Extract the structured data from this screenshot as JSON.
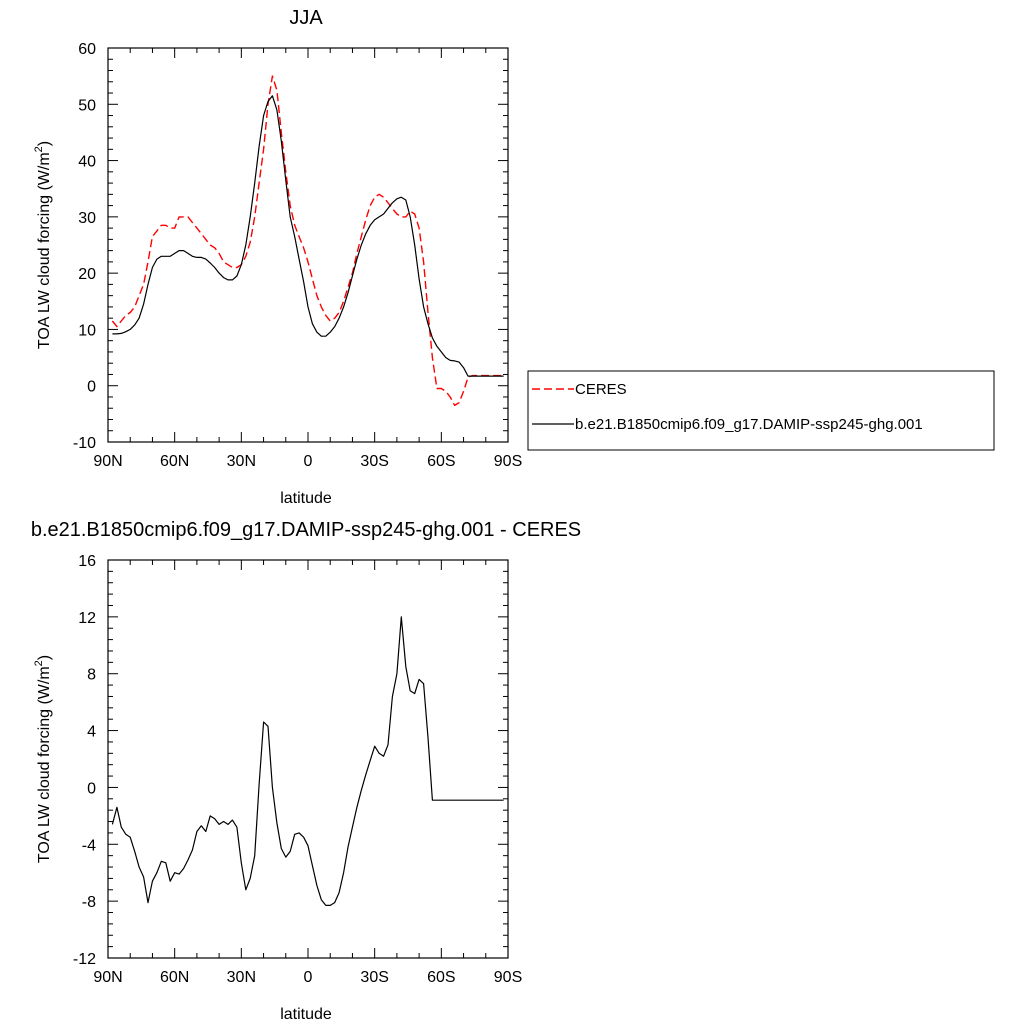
{
  "chart_data": [
    {
      "type": "line",
      "title": "JJA",
      "xlabel": "latitude",
      "ylabel": "TOA LW cloud forcing (W/m",
      "ylabel_sup": "2",
      "ylabel_end": ")",
      "xlim": [
        -90,
        90
      ],
      "ylim": [
        -10,
        60
      ],
      "xticks": [
        -90,
        -60,
        -30,
        0,
        30,
        60,
        90
      ],
      "xtick_labels": [
        "90N",
        "60N",
        "30N",
        "0",
        "30S",
        "60S",
        "90S"
      ],
      "yticks": [
        -10,
        0,
        10,
        20,
        30,
        40,
        50,
        60
      ],
      "ytick_labels": [
        "-10",
        "0",
        "10",
        "20",
        "30",
        "40",
        "50",
        "60"
      ],
      "legend_position": "right",
      "series": [
        {
          "name": "CERES",
          "color": "#ff0000",
          "dash": "dashed",
          "x": [
            -88,
            -86,
            -84,
            -82,
            -80,
            -78,
            -76,
            -74,
            -72,
            -70,
            -68,
            -66,
            -64,
            -62,
            -60,
            -58,
            -56,
            -54,
            -52,
            -50,
            -48,
            -46,
            -44,
            -42,
            -40,
            -38,
            -36,
            -34,
            -32,
            -30,
            -28,
            -26,
            -24,
            -22,
            -20,
            -18,
            -16,
            -14,
            -12,
            -10,
            -8,
            -6,
            -4,
            -2,
            0,
            2,
            4,
            6,
            8,
            10,
            12,
            14,
            16,
            18,
            20,
            22,
            24,
            26,
            28,
            30,
            32,
            34,
            36,
            38,
            40,
            42,
            44,
            46,
            48,
            50,
            52,
            54,
            56,
            58,
            60,
            62,
            64,
            66,
            68,
            70,
            72,
            74,
            76,
            78,
            80,
            82,
            84,
            86,
            88
          ],
          "values": [
            11.5,
            10.5,
            11.5,
            12.5,
            13.0,
            14.0,
            16.0,
            18.0,
            22.0,
            26.5,
            27.5,
            28.5,
            28.5,
            28.0,
            28.0,
            30.0,
            30.0,
            30.0,
            29.0,
            28.0,
            27.0,
            26.0,
            25.0,
            24.5,
            23.5,
            22.0,
            21.5,
            21.0,
            21.0,
            21.5,
            23.0,
            25.5,
            30.0,
            36.0,
            42.0,
            50.0,
            55.0,
            52.5,
            45.0,
            38.0,
            32.0,
            28.5,
            26.5,
            24.5,
            22.0,
            19.0,
            16.0,
            14.0,
            12.5,
            11.5,
            12.0,
            13.0,
            15.0,
            17.5,
            20.0,
            23.5,
            26.5,
            29.5,
            32.0,
            33.5,
            34.0,
            33.5,
            32.5,
            31.5,
            30.5,
            30.0,
            30.0,
            31.0,
            30.5,
            28.0,
            22.0,
            13.0,
            5.0,
            -0.5,
            -0.5,
            -1.0,
            -2.0,
            -3.5,
            -3.0,
            -1.0,
            1.5,
            1.8,
            1.8,
            1.8,
            1.8,
            1.8,
            1.8,
            1.8,
            1.8
          ]
        },
        {
          "name": "b.e21.B1850cmip6.f09_g17.DAMIP-ssp245-ghg.001",
          "color": "#000000",
          "dash": "solid",
          "x": [
            -88,
            -86,
            -84,
            -82,
            -80,
            -78,
            -76,
            -74,
            -72,
            -70,
            -68,
            -66,
            -64,
            -62,
            -60,
            -58,
            -56,
            -54,
            -52,
            -50,
            -48,
            -46,
            -44,
            -42,
            -40,
            -38,
            -36,
            -34,
            -32,
            -30,
            -28,
            -26,
            -24,
            -22,
            -20,
            -18,
            -16,
            -14,
            -12,
            -10,
            -8,
            -6,
            -4,
            -2,
            0,
            2,
            4,
            6,
            8,
            10,
            12,
            14,
            16,
            18,
            20,
            22,
            24,
            26,
            28,
            30,
            32,
            34,
            36,
            38,
            40,
            42,
            44,
            46,
            48,
            50,
            52,
            54,
            56,
            58,
            60,
            62,
            64,
            66,
            68,
            70,
            72,
            74,
            76,
            78,
            80,
            82,
            84,
            86,
            88
          ],
          "values": [
            9.2,
            9.2,
            9.3,
            9.6,
            10.0,
            10.8,
            12.0,
            14.5,
            18.0,
            21.0,
            22.5,
            23.0,
            23.0,
            23.0,
            23.5,
            24.0,
            24.0,
            23.5,
            23.0,
            22.8,
            22.8,
            22.5,
            21.8,
            21.0,
            20.0,
            19.2,
            18.8,
            18.8,
            19.5,
            21.5,
            25.0,
            30.0,
            36.0,
            42.5,
            48.0,
            50.5,
            51.5,
            49.0,
            43.5,
            36.5,
            30.0,
            26.5,
            22.5,
            18.5,
            14.0,
            11.0,
            9.5,
            8.8,
            8.8,
            9.5,
            10.5,
            12.0,
            14.0,
            16.5,
            19.5,
            22.5,
            25.0,
            27.0,
            28.5,
            29.5,
            30.0,
            30.5,
            31.5,
            32.5,
            33.2,
            33.5,
            33.0,
            30.0,
            25.0,
            19.0,
            14.0,
            11.0,
            8.5,
            7.0,
            6.0,
            5.0,
            4.5,
            4.4,
            4.2,
            3.2,
            1.7,
            1.7,
            1.7,
            1.7,
            1.7,
            1.7,
            1.7,
            1.7,
            1.7
          ]
        }
      ]
    },
    {
      "type": "line",
      "title": "b.e21.B1850cmip6.f09_g17.DAMIP-ssp245-ghg.001 - CERES",
      "xlabel": "latitude",
      "ylabel": "TOA LW cloud forcing (W/m",
      "ylabel_sup": "2",
      "ylabel_end": ")",
      "xlim": [
        -90,
        90
      ],
      "ylim": [
        -12,
        16
      ],
      "xticks": [
        -90,
        -60,
        -30,
        0,
        30,
        60,
        90
      ],
      "xtick_labels": [
        "90N",
        "60N",
        "30N",
        "0",
        "30S",
        "60S",
        "90S"
      ],
      "yticks": [
        -12,
        -8,
        -4,
        0,
        4,
        8,
        12,
        16
      ],
      "ytick_labels": [
        "-12",
        "-8",
        "-4",
        "0",
        "4",
        "8",
        "12",
        "16"
      ],
      "series": [
        {
          "color": "#000000",
          "dash": "solid",
          "x": [
            -88,
            -86,
            -84,
            -82,
            -80,
            -78,
            -76,
            -74,
            -72,
            -70,
            -68,
            -66,
            -64,
            -62,
            -60,
            -58,
            -56,
            -54,
            -52,
            -50,
            -48,
            -46,
            -44,
            -42,
            -40,
            -38,
            -36,
            -34,
            -32,
            -30,
            -28,
            -26,
            -24,
            -22,
            -20,
            -18,
            -16,
            -14,
            -12,
            -10,
            -8,
            -6,
            -4,
            -2,
            0,
            2,
            4,
            6,
            8,
            10,
            12,
            14,
            16,
            18,
            20,
            22,
            24,
            26,
            28,
            30,
            32,
            34,
            36,
            38,
            40,
            42,
            44,
            46,
            48,
            50,
            52,
            54,
            56,
            58,
            60,
            62,
            64,
            66,
            68,
            70,
            72,
            74,
            76,
            78,
            80,
            82,
            84,
            86,
            88
          ],
          "values": [
            -2.6,
            -1.4,
            -2.8,
            -3.3,
            -3.5,
            -4.5,
            -5.6,
            -6.3,
            -8.1,
            -6.6,
            -6.0,
            -5.2,
            -5.3,
            -6.6,
            -6.0,
            -6.1,
            -5.7,
            -5.1,
            -4.4,
            -3.1,
            -2.7,
            -3.1,
            -2.0,
            -2.2,
            -2.6,
            -2.4,
            -2.6,
            -2.3,
            -2.8,
            -5.3,
            -7.2,
            -6.4,
            -4.8,
            0.2,
            4.6,
            4.3,
            0.0,
            -2.5,
            -4.3,
            -4.9,
            -4.5,
            -3.3,
            -3.2,
            -3.5,
            -4.1,
            -5.5,
            -6.9,
            -7.9,
            -8.3,
            -8.3,
            -8.1,
            -7.4,
            -6.0,
            -4.2,
            -2.8,
            -1.4,
            -0.2,
            0.9,
            1.9,
            2.9,
            2.4,
            2.2,
            3.0,
            6.4,
            8.0,
            12.0,
            8.5,
            6.8,
            6.6,
            7.6,
            7.3,
            3.5,
            -0.9,
            -0.9,
            -0.9,
            -0.9,
            -0.9,
            -0.9,
            -0.9,
            -0.9,
            -0.9,
            -0.9,
            -0.9,
            -0.9,
            -0.9,
            -0.9,
            -0.9,
            -0.9,
            -0.9
          ]
        }
      ]
    }
  ]
}
